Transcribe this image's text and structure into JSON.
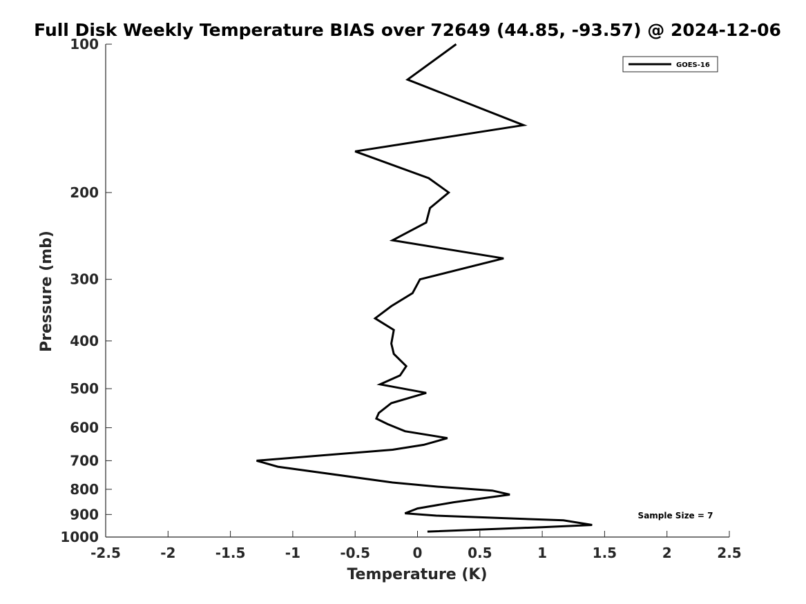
{
  "chart_data": {
    "type": "line",
    "title": "Full Disk Weekly Temperature BIAS over 72649 (44.85, -93.57) @ 2024-12-06",
    "xlabel": "Temperature (K)",
    "ylabel": "Pressure (mb)",
    "xlim": [
      -2.5,
      2.5
    ],
    "ylim": [
      100,
      1000
    ],
    "y_scale": "log",
    "y_reversed": true,
    "grid": false,
    "x_ticks": [
      -2.5,
      -2,
      -1.5,
      -1,
      -0.5,
      0,
      0.5,
      1,
      1.5,
      2,
      2.5
    ],
    "x_tick_labels": [
      "-2.5",
      "-2",
      "-1.5",
      "-1",
      "-0.5",
      "0",
      "0.5",
      "1",
      "1.5",
      "2",
      "2.5"
    ],
    "y_ticks": [
      100,
      200,
      300,
      400,
      500,
      600,
      700,
      800,
      900,
      1000
    ],
    "y_tick_labels": [
      "100",
      "200",
      "300",
      "400",
      "500",
      "600",
      "700",
      "800",
      "900",
      "1000"
    ],
    "legend": {
      "position": "top-right",
      "entries": [
        "GOES-16"
      ]
    },
    "annotations": [
      "Sample Size = 7"
    ],
    "series": [
      {
        "name": "GOES-16",
        "color": "#000000",
        "points": [
          {
            "x": 0.31,
            "y": 100
          },
          {
            "x": -0.08,
            "y": 118
          },
          {
            "x": 0.85,
            "y": 146
          },
          {
            "x": -0.5,
            "y": 165
          },
          {
            "x": 0.09,
            "y": 187
          },
          {
            "x": 0.25,
            "y": 200
          },
          {
            "x": 0.1,
            "y": 215
          },
          {
            "x": 0.07,
            "y": 230
          },
          {
            "x": -0.2,
            "y": 250
          },
          {
            "x": 0.69,
            "y": 272
          },
          {
            "x": 0.02,
            "y": 300
          },
          {
            "x": -0.04,
            "y": 320
          },
          {
            "x": -0.21,
            "y": 340
          },
          {
            "x": -0.34,
            "y": 360
          },
          {
            "x": -0.19,
            "y": 380
          },
          {
            "x": -0.21,
            "y": 405
          },
          {
            "x": -0.19,
            "y": 425
          },
          {
            "x": -0.09,
            "y": 450
          },
          {
            "x": -0.14,
            "y": 470
          },
          {
            "x": -0.3,
            "y": 490
          },
          {
            "x": 0.07,
            "y": 510
          },
          {
            "x": -0.21,
            "y": 535
          },
          {
            "x": -0.31,
            "y": 560
          },
          {
            "x": -0.33,
            "y": 575
          },
          {
            "x": -0.24,
            "y": 590
          },
          {
            "x": -0.1,
            "y": 610
          },
          {
            "x": 0.24,
            "y": 630
          },
          {
            "x": 0.05,
            "y": 650
          },
          {
            "x": -0.2,
            "y": 665
          },
          {
            "x": -1.29,
            "y": 700
          },
          {
            "x": -1.12,
            "y": 720
          },
          {
            "x": -0.2,
            "y": 775
          },
          {
            "x": 0.15,
            "y": 790
          },
          {
            "x": 0.6,
            "y": 805
          },
          {
            "x": 0.74,
            "y": 820
          },
          {
            "x": 0.29,
            "y": 850
          },
          {
            "x": 0,
            "y": 875
          },
          {
            "x": -0.1,
            "y": 895
          },
          {
            "x": 0.15,
            "y": 905
          },
          {
            "x": 1.17,
            "y": 925
          },
          {
            "x": 1.4,
            "y": 945
          },
          {
            "x": 1,
            "y": 955
          },
          {
            "x": 0.08,
            "y": 975
          }
        ]
      }
    ]
  }
}
